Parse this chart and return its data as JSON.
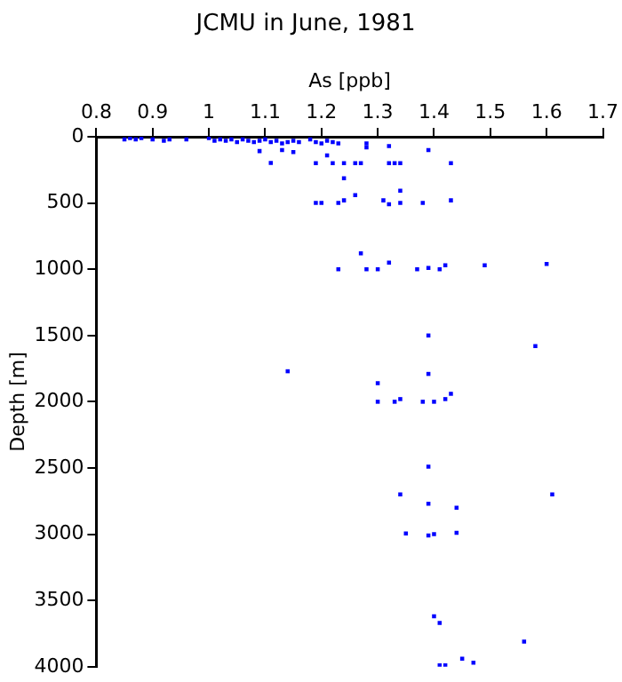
{
  "chart_data": {
    "type": "scatter",
    "title": "JCMU in June, 1981",
    "xlabel": "As [ppb]",
    "ylabel": "Depth [m]",
    "x": [
      0.85,
      0.86,
      0.87,
      0.88,
      0.9,
      0.92,
      0.93,
      0.96,
      1.0,
      1.01,
      1.02,
      1.03,
      1.04,
      1.05,
      1.06,
      1.07,
      1.08,
      1.09,
      1.1,
      1.11,
      1.12,
      1.13,
      1.14,
      1.15,
      1.16,
      1.18,
      1.19,
      1.2,
      1.21,
      1.22,
      1.23,
      1.09,
      1.11,
      1.13,
      1.15,
      1.19,
      1.21,
      1.22,
      1.24,
      1.24,
      1.26,
      1.27,
      1.28,
      1.28,
      1.32,
      1.32,
      1.33,
      1.34,
      1.34,
      1.39,
      1.43,
      1.19,
      1.2,
      1.23,
      1.24,
      1.26,
      1.31,
      1.32,
      1.34,
      1.38,
      1.43,
      1.27,
      1.23,
      1.28,
      1.3,
      1.32,
      1.37,
      1.39,
      1.41,
      1.42,
      1.49,
      1.6,
      1.39,
      1.58,
      1.14,
      1.39,
      1.3,
      1.3,
      1.33,
      1.34,
      1.38,
      1.4,
      1.42,
      1.43,
      1.39,
      1.34,
      1.61,
      1.39,
      1.44,
      1.35,
      1.39,
      1.4,
      1.44,
      1.4,
      1.41,
      1.56,
      1.41,
      1.42,
      1.45,
      1.47
    ],
    "values": [
      20,
      10,
      20,
      10,
      20,
      30,
      20,
      20,
      10,
      30,
      20,
      30,
      20,
      40,
      20,
      30,
      40,
      30,
      20,
      40,
      30,
      50,
      40,
      30,
      40,
      20,
      40,
      50,
      30,
      40,
      50,
      108,
      197,
      100,
      115,
      200,
      140,
      200,
      200,
      314,
      200,
      200,
      50,
      80,
      70,
      200,
      200,
      200,
      407,
      100,
      200,
      500,
      500,
      500,
      480,
      440,
      480,
      510,
      500,
      500,
      480,
      880,
      1000,
      1000,
      1000,
      950,
      1000,
      990,
      1000,
      970,
      970,
      960,
      1500,
      1580,
      1770,
      1790,
      1860,
      2000,
      2000,
      1980,
      2000,
      2000,
      1980,
      1940,
      2490,
      2700,
      2700,
      2770,
      2800,
      2995,
      3010,
      3000,
      2990,
      3620,
      3670,
      3810,
      3990,
      3990,
      3940,
      3970
    ],
    "color": "#0000ff",
    "marker": "square",
    "xlim": [
      0.8,
      1.7
    ],
    "xticks": [
      0.8,
      0.9,
      1,
      1.1,
      1.2,
      1.3,
      1.4,
      1.5,
      1.6,
      1.7
    ],
    "ylim": [
      4000,
      0
    ],
    "yticks": [
      0,
      500,
      1000,
      1500,
      2000,
      2500,
      3000,
      3500,
      4000
    ],
    "grid": false,
    "legend": false
  }
}
